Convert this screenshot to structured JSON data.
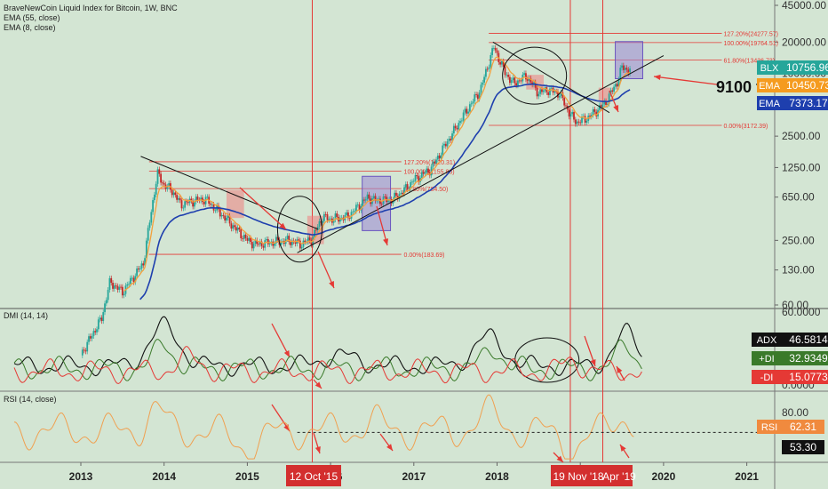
{
  "header": {
    "title": "BraveNewCoin Liquid Index for Bitcoin, 1W, BNC",
    "ema55": "EMA (55, close)",
    "ema8": "EMA (8, close)"
  },
  "colors": {
    "background": "#d3e5d3",
    "ema55": "#1e3fae",
    "ema8": "#f2a03d",
    "trendline": "#111111",
    "fib": "#e53935",
    "adx": "#111111",
    "plus_di": "#3a7a2a",
    "minus_di": "#e53935",
    "rsi": "#f0a050",
    "purple_box": "#9a86d6",
    "red_box": "#f08080"
  },
  "chart_data": [
    {
      "type": "candlestick",
      "title": "BraveNewCoin Liquid Index for Bitcoin, 1W, BNC",
      "y_scale": "log",
      "y_ticks": [
        "45000.00",
        "20000.00",
        "10000.00",
        "5000.00",
        "2500.00",
        "1250.00",
        "650.00",
        "250.00",
        "130.00",
        "60.00"
      ],
      "x_ticks": [
        "2013",
        "2014",
        "2015",
        "2016",
        "2017",
        "2018",
        "2019",
        "2020",
        "2021"
      ],
      "series": [
        {
          "name": "BLX",
          "last": "10756.96"
        },
        {
          "name": "EMA",
          "last": "10450.73"
        },
        {
          "name": "EMA",
          "last": "7373.17"
        }
      ],
      "price_path": [
        [
          2013.0,
          20
        ],
        [
          2013.25,
          45
        ],
        [
          2013.35,
          100
        ],
        [
          2013.5,
          80
        ],
        [
          2013.75,
          150
        ],
        [
          2013.85,
          500
        ],
        [
          2013.92,
          1100
        ],
        [
          2014.0,
          850
        ],
        [
          2014.1,
          750
        ],
        [
          2014.2,
          550
        ],
        [
          2014.35,
          600
        ],
        [
          2014.5,
          620
        ],
        [
          2014.6,
          520
        ],
        [
          2014.75,
          400
        ],
        [
          2014.85,
          330
        ],
        [
          2015.0,
          250
        ],
        [
          2015.1,
          230
        ],
        [
          2015.3,
          240
        ],
        [
          2015.5,
          250
        ],
        [
          2015.65,
          230
        ],
        [
          2015.78,
          260
        ],
        [
          2015.9,
          420
        ],
        [
          2016.0,
          400
        ],
        [
          2016.2,
          420
        ],
        [
          2016.45,
          650
        ],
        [
          2016.55,
          600
        ],
        [
          2016.75,
          620
        ],
        [
          2016.9,
          780
        ],
        [
          2017.0,
          950
        ],
        [
          2017.2,
          1200
        ],
        [
          2017.4,
          2200
        ],
        [
          2017.6,
          4000
        ],
        [
          2017.8,
          7000
        ],
        [
          2017.96,
          18000
        ],
        [
          2018.1,
          10000
        ],
        [
          2018.2,
          8000
        ],
        [
          2018.35,
          9500
        ],
        [
          2018.5,
          6500
        ],
        [
          2018.6,
          7000
        ],
        [
          2018.75,
          6400
        ],
        [
          2018.88,
          4000
        ],
        [
          2018.96,
          3400
        ],
        [
          2019.1,
          3800
        ],
        [
          2019.3,
          5200
        ],
        [
          2019.45,
          8500
        ],
        [
          2019.5,
          11500
        ],
        [
          2019.6,
          10700
        ]
      ],
      "fib_levels_left": [
        [
          "127.20%(1420.31)",
          1420.31
        ],
        [
          "100.00%(1155.88)",
          1155.88
        ],
        [
          "61.80%(784.50)",
          784.5
        ],
        [
          "0.00%(183.69)",
          183.69
        ]
      ],
      "fib_levels_right": [
        [
          "127.20%(24277.57)",
          24277.57
        ],
        [
          "100.00%(19764.51)",
          19764.51
        ],
        [
          "61.80%(13436.73)",
          13436.73
        ],
        [
          "0.00%(3172.39)",
          3172.39
        ]
      ],
      "annotation": "9100 floor",
      "date_labels": [
        "12 Oct '15",
        "19 Nov '18",
        "Apr '19"
      ]
    },
    {
      "type": "line",
      "title": "DMI (14, 14)",
      "y_ticks": [
        "60.0000",
        "0.0000"
      ],
      "series": [
        {
          "name": "ADX",
          "last": "46.5814"
        },
        {
          "name": "+DI",
          "last": "32.9349"
        },
        {
          "name": "-DI",
          "last": "15.0773"
        }
      ]
    },
    {
      "type": "line",
      "title": "RSI (14, close)",
      "y_ticks": [
        "80.00"
      ],
      "series": [
        {
          "name": "RSI",
          "last": "62.31"
        }
      ],
      "reference_line": "53.30"
    }
  ]
}
